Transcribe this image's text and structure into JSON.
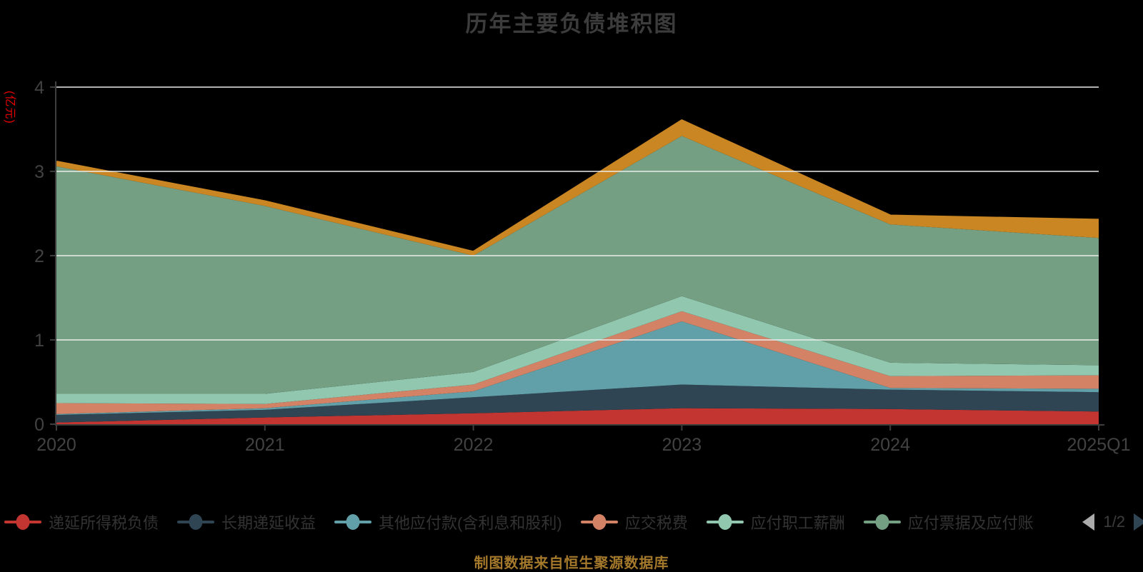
{
  "title": "历年主要负债堆积图",
  "footer": "制图数据来自恒生聚源数据库",
  "y_axis": {
    "name": "(亿元)",
    "name_color": "#e60000",
    "tick_labels": [
      "0",
      "1",
      "2",
      "3",
      "4"
    ]
  },
  "x_axis": {
    "tick_labels": [
      "2020",
      "2021",
      "2022",
      "2023",
      "2024",
      "2025Q1"
    ]
  },
  "legend": {
    "items": [
      {
        "label": "递延所得税负债",
        "color": "#c23531",
        "clipped": false
      },
      {
        "label": "长期递延收益",
        "color": "#2f4554",
        "clipped": false
      },
      {
        "label": "其他应付款(含利息和股利)",
        "color": "#61a0a8",
        "clipped": false
      },
      {
        "label": "应交税费",
        "color": "#d48265",
        "clipped": false
      },
      {
        "label": "应付职工薪酬",
        "color": "#91c7ae",
        "clipped": false
      },
      {
        "label": "应付票据及应付账",
        "color": "#749f83",
        "clipped": true
      }
    ],
    "pagination": {
      "label": "1/2",
      "prev_color": "#ababab",
      "next_color": "#2f4554"
    }
  },
  "chart_data": {
    "type": "area",
    "stacked": true,
    "title": "历年主要负债堆积图",
    "xlabel": "",
    "ylabel": "(亿元)",
    "ylim": [
      0,
      4
    ],
    "grid": true,
    "legend_position": "bottom",
    "categories": [
      "2020",
      "2021",
      "2022",
      "2023",
      "2024",
      "2025Q1"
    ],
    "series": [
      {
        "name": "递延所得税负债",
        "color": "#c23531",
        "values": [
          0.02,
          0.08,
          0.13,
          0.19,
          0.18,
          0.15
        ]
      },
      {
        "name": "长期递延收益",
        "color": "#2f4554",
        "values": [
          0.09,
          0.09,
          0.19,
          0.28,
          0.23,
          0.23
        ]
      },
      {
        "name": "其他应付款(含利息和股利)",
        "color": "#61a0a8",
        "values": [
          0.01,
          0.02,
          0.07,
          0.75,
          0.02,
          0.04
        ]
      },
      {
        "name": "应交税费",
        "color": "#d48265",
        "values": [
          0.13,
          0.05,
          0.08,
          0.12,
          0.14,
          0.16
        ]
      },
      {
        "name": "应付职工薪酬",
        "color": "#91c7ae",
        "values": [
          0.11,
          0.12,
          0.15,
          0.18,
          0.16,
          0.12
        ]
      },
      {
        "name": "应付票据及应付账",
        "color": "#749f83",
        "values": [
          2.7,
          2.23,
          1.38,
          1.9,
          1.64,
          1.51
        ]
      },
      {
        "name": "",
        "color": "#ca8622",
        "values": [
          0.05,
          0.05,
          0.04,
          0.18,
          0.1,
          0.21
        ]
      }
    ],
    "axis_color": "#3d3d3d",
    "tick_label_color": "#424242",
    "gridline_color": "rgba(236,236,236,0.75)"
  }
}
